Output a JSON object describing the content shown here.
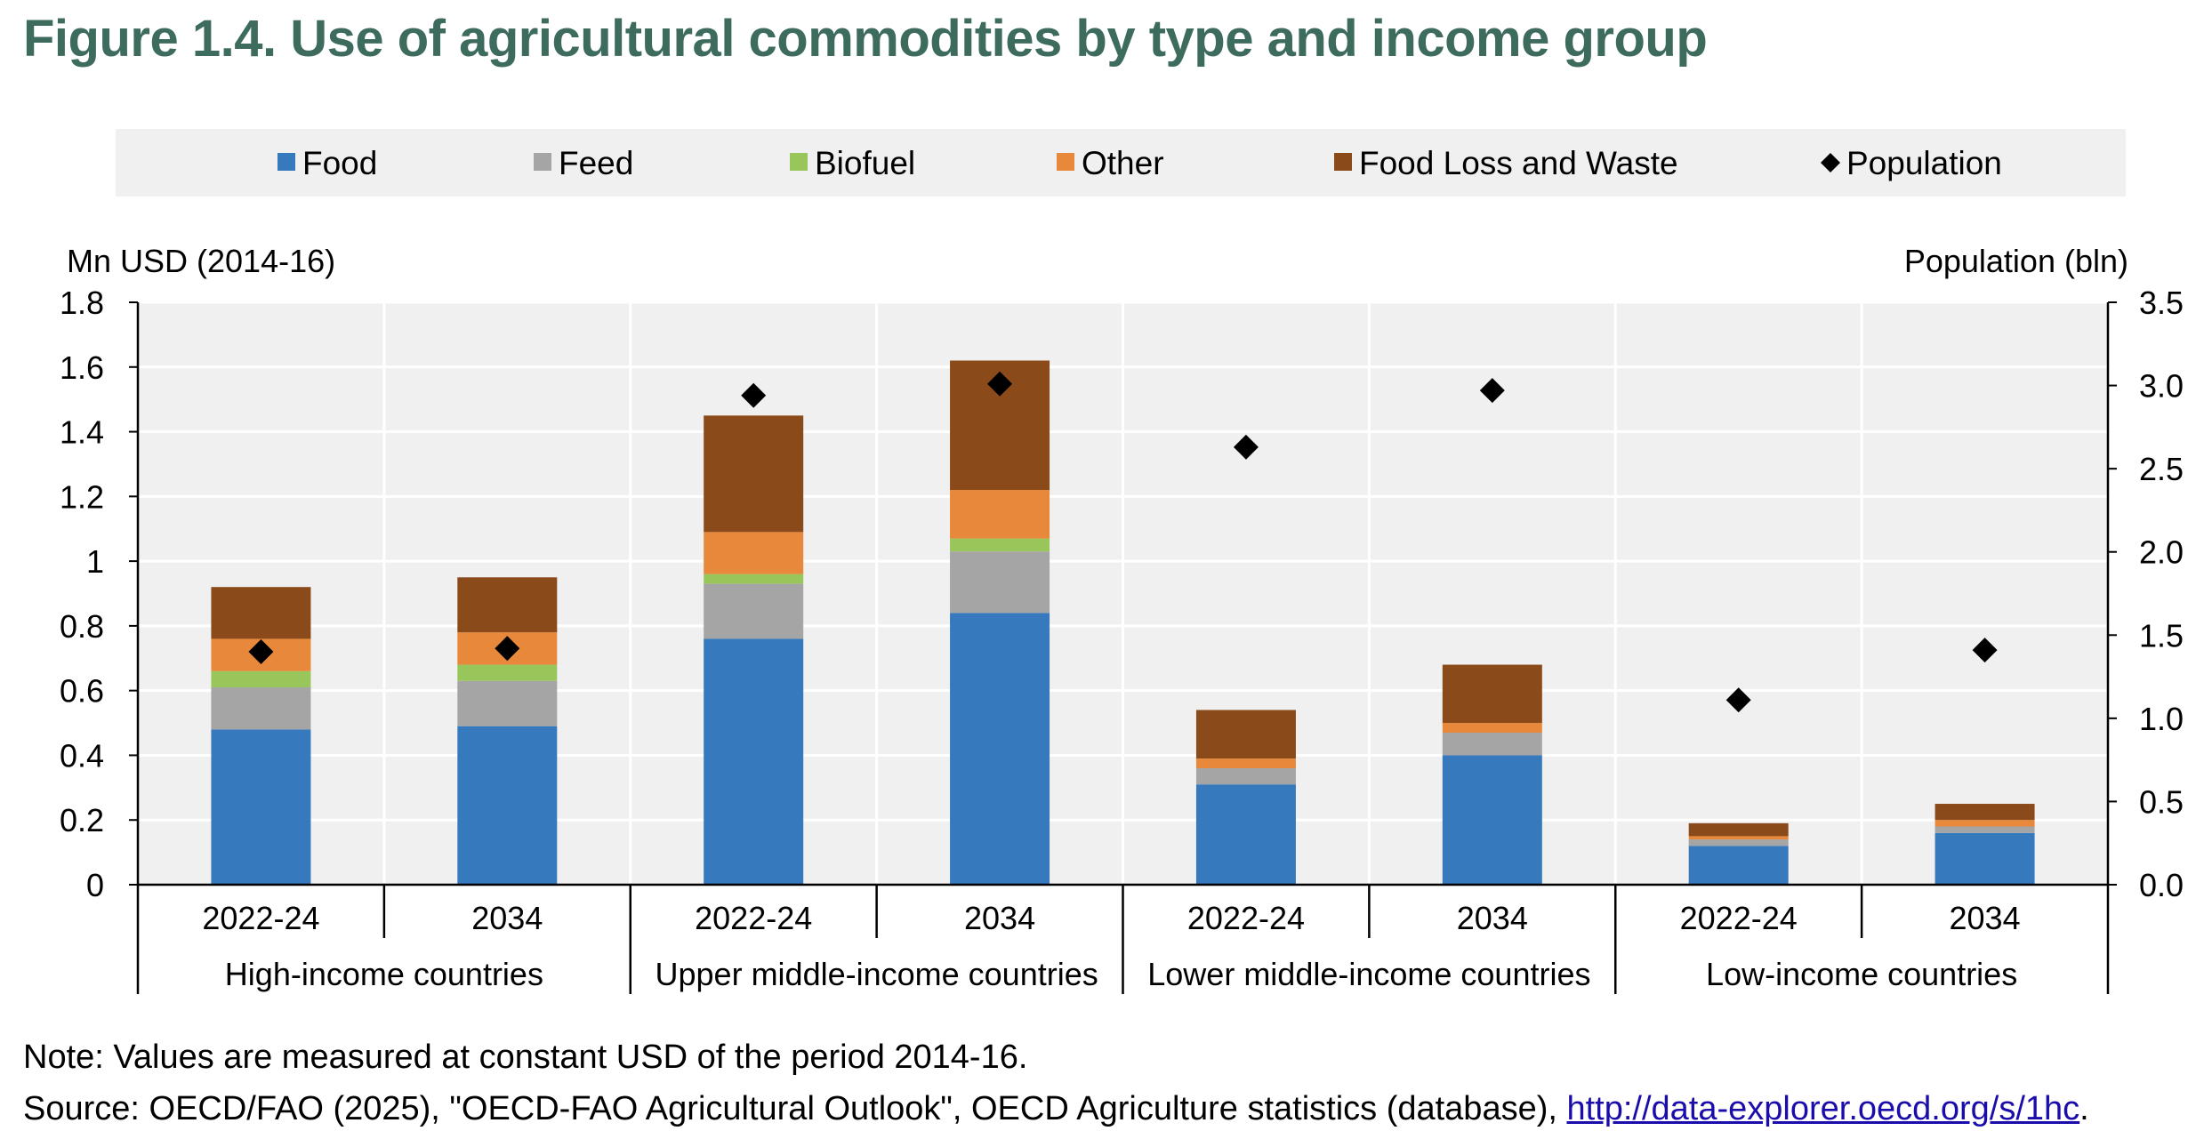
{
  "title": "Figure 1.4. Use of agricultural commodities by type and income group",
  "note": "Note: Values are measured at constant USD of the period 2014-16.",
  "source_prefix": "Source: OECD/FAO (2025), \"OECD-FAO Agricultural Outlook\", OECD Agriculture statistics (database), ",
  "source_link": "http://data-explorer.oecd.org/s/1hc",
  "source_suffix": ".",
  "chart_data": {
    "type": "bar",
    "stacked": true,
    "ylabel_left": "Mn USD (2014-16)",
    "ylabel_right": "Population (bln)",
    "ylim_left": [
      0,
      1.8
    ],
    "ylim_right": [
      0,
      3.5
    ],
    "yticks_left": [
      "0",
      "0.2",
      "0.4",
      "0.6",
      "0.8",
      "1",
      "1.2",
      "1.4",
      "1.6",
      "1.8"
    ],
    "yticks_right": [
      "0.0",
      "0.5",
      "1.0",
      "1.5",
      "2.0",
      "2.5",
      "3.0",
      "3.5"
    ],
    "grid": true,
    "legend_position": "top",
    "groups": [
      "High-income countries",
      "Upper middle-income countries",
      "Lower middle-income countries",
      "Low-income countries"
    ],
    "categories": [
      "2022-24",
      "2034",
      "2022-24",
      "2034",
      "2022-24",
      "2034",
      "2022-24",
      "2034"
    ],
    "series": [
      {
        "name": "Food",
        "color": "#3779bd",
        "values": [
          0.48,
          0.49,
          0.76,
          0.84,
          0.31,
          0.4,
          0.12,
          0.16
        ]
      },
      {
        "name": "Feed",
        "color": "#a5a5a5",
        "values": [
          0.13,
          0.14,
          0.17,
          0.19,
          0.05,
          0.07,
          0.02,
          0.02
        ]
      },
      {
        "name": "Biofuel",
        "color": "#99c65a",
        "values": [
          0.05,
          0.05,
          0.03,
          0.04,
          0.0,
          0.0,
          0.0,
          0.0
        ]
      },
      {
        "name": "Other",
        "color": "#e8883a",
        "values": [
          0.1,
          0.1,
          0.13,
          0.15,
          0.03,
          0.03,
          0.01,
          0.02
        ]
      },
      {
        "name": "Food Loss and Waste",
        "color": "#8b4a1a",
        "values": [
          0.16,
          0.17,
          0.36,
          0.4,
          0.15,
          0.18,
          0.04,
          0.05
        ]
      }
    ],
    "line_series": {
      "name": "Population",
      "color": "#000000",
      "marker": "diamond",
      "axis": "right",
      "values": [
        1.4,
        1.42,
        2.94,
        3.01,
        2.63,
        2.97,
        1.11,
        1.41
      ]
    }
  }
}
